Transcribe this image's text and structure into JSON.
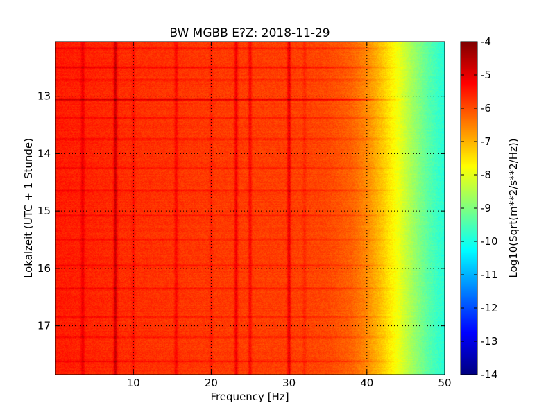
{
  "chart_data": {
    "type": "heatmap",
    "title": "BW MGBB E?Z: 2018-11-29",
    "xlabel": "Frequency [Hz]",
    "ylabel": "Lokalzeit (UTC + 1 Stunde)",
    "xlim": [
      0,
      50
    ],
    "ylim": [
      12.05,
      17.85
    ],
    "y_inverted": true,
    "x_ticks": [
      "10",
      "20",
      "30",
      "40",
      "50"
    ],
    "x_tick_values": [
      10,
      20,
      30,
      40,
      50
    ],
    "y_ticks": [
      "13",
      "14",
      "15",
      "16",
      "17"
    ],
    "y_tick_values": [
      13,
      14,
      15,
      16,
      17
    ],
    "grid": true,
    "colormap": "jet",
    "colorbar": {
      "label": "Log10(Sqrt(m**2/s**2/Hz))",
      "vmin": -14,
      "vmax": -4,
      "ticks": [
        "-4",
        "-5",
        "-6",
        "-7",
        "-8",
        "-9",
        "-10",
        "-11",
        "-12",
        "-13",
        "-14"
      ],
      "tick_values": [
        -4,
        -5,
        -6,
        -7,
        -8,
        -9,
        -10,
        -11,
        -12,
        -13,
        -14
      ]
    },
    "spectral_profile": {
      "frequency_hz": [
        0,
        5,
        10,
        15,
        20,
        25,
        30,
        35,
        38,
        40,
        42,
        44,
        46,
        48,
        50
      ],
      "log10_amplitude": [
        -5.5,
        -5.6,
        -5.7,
        -5.75,
        -5.8,
        -5.85,
        -5.85,
        -5.95,
        -6.2,
        -6.6,
        -7.2,
        -7.9,
        -8.7,
        -9.4,
        -9.9
      ]
    },
    "frequency_lines_hz": [
      {
        "f": 3.5,
        "delta": 0.5
      },
      {
        "f": 7.7,
        "delta": 0.9
      },
      {
        "f": 10.0,
        "delta": 0.3
      },
      {
        "f": 15.5,
        "delta": 0.5
      },
      {
        "f": 20.0,
        "delta": 0.25
      },
      {
        "f": 23.2,
        "delta": 0.7
      },
      {
        "f": 25.0,
        "delta": 0.6
      },
      {
        "f": 30.0,
        "delta": 0.8
      },
      {
        "f": 32.0,
        "delta": 0.25
      }
    ],
    "time_events_h": [
      {
        "t": 12.17,
        "delta": 0.4
      },
      {
        "t": 12.5,
        "delta": 0.45
      },
      {
        "t": 12.72,
        "delta": 0.3
      },
      {
        "t": 13.06,
        "delta": 0.9
      },
      {
        "t": 13.38,
        "delta": 0.35
      },
      {
        "t": 13.75,
        "delta": 0.35
      },
      {
        "t": 14.25,
        "delta": 0.3
      },
      {
        "t": 14.65,
        "delta": 0.35
      },
      {
        "t": 15.08,
        "delta": 0.35
      },
      {
        "t": 15.5,
        "delta": 0.3
      },
      {
        "t": 15.95,
        "delta": 0.3
      },
      {
        "t": 16.35,
        "delta": 0.4
      },
      {
        "t": 16.85,
        "delta": 0.3
      },
      {
        "t": 17.2,
        "delta": 0.3
      },
      {
        "t": 17.62,
        "delta": 0.4
      }
    ],
    "colors": {
      "frame": "#000000",
      "grid": "#000000",
      "background": "#ffffff"
    }
  }
}
